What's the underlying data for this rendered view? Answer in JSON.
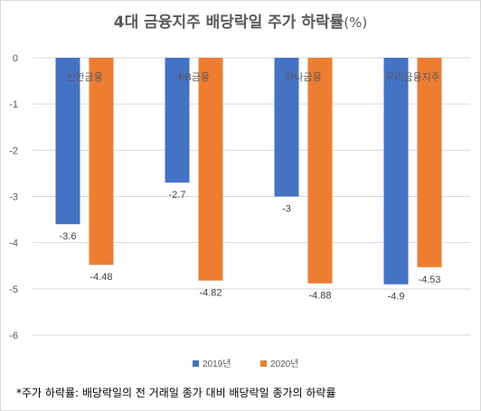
{
  "chart_data": {
    "type": "bar",
    "title": "4대 금융지주 배당락일 주가 하락률",
    "title_unit": "(%)",
    "categories": [
      "신한금융",
      "KB금융",
      "하나금융",
      "우리금융지주"
    ],
    "series": [
      {
        "name": "2019년",
        "values": [
          -3.6,
          -2.7,
          -3,
          -4.9
        ],
        "labels": [
          "-3.6",
          "-2.7",
          "-3",
          "-4.9"
        ],
        "color": "#4472c4"
      },
      {
        "name": "2020년",
        "values": [
          -4.48,
          -4.82,
          -4.88,
          -4.53
        ],
        "labels": [
          "-4.48",
          "-4.82",
          "-4.88",
          "-4.53"
        ],
        "color": "#ed7d31"
      }
    ],
    "ylim": [
      -6,
      0
    ],
    "yticks": [
      0,
      -1,
      -2,
      -3,
      -4,
      -5,
      -6
    ],
    "ytick_labels": [
      "0",
      "-1",
      "-2",
      "-3",
      "-4",
      "-5",
      "-6"
    ],
    "xlabel": "",
    "ylabel": "",
    "grid": true,
    "legend_position": "bottom",
    "gridline_color": "#d9d9d9",
    "footnote": "*주가 하락률: 배당락일의 전 거래일 종가 대비 배당락일 종가의 하락률"
  }
}
